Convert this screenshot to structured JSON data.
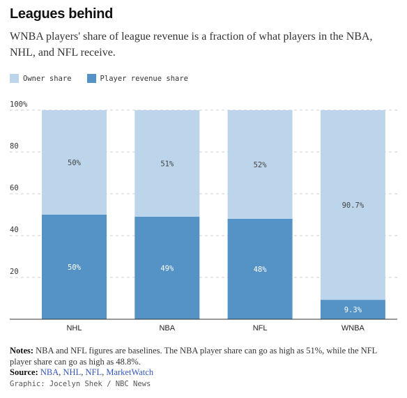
{
  "header": {
    "title": "Leagues behind",
    "subtitle": "WNBA players' share of league revenue is a fraction of what players in the NBA, NHL, and NFL receive."
  },
  "legend": [
    {
      "label": "Owner share",
      "color": "#bcd5ea"
    },
    {
      "label": "Player revenue share",
      "color": "#5592c6"
    }
  ],
  "chart_data": {
    "type": "bar",
    "stacked": true,
    "categories": [
      "NHL",
      "NBA",
      "NFL",
      "WNBA"
    ],
    "series": [
      {
        "name": "Player revenue share",
        "values": [
          50,
          49,
          48,
          9.3
        ],
        "labels": [
          "50%",
          "49%",
          "48%",
          "9.3%"
        ],
        "color": "#5592c6"
      },
      {
        "name": "Owner share",
        "values": [
          50,
          51,
          52,
          90.7
        ],
        "labels": [
          "50%",
          "51%",
          "52%",
          "90.7%"
        ],
        "color": "#bcd5ea"
      }
    ],
    "yticks": [
      "20",
      "40",
      "60",
      "80",
      "100%"
    ],
    "ytick_values": [
      20,
      40,
      60,
      80,
      100
    ],
    "ylim": [
      0,
      100
    ],
    "grid": true
  },
  "footer": {
    "notes_label": "Notes:",
    "notes_text": "NBA and NFL figures are baselines. The NBA player share can go as high as 51%, while the NFL player share can go as high as 48.8%.",
    "source_label": "Source:",
    "sources": [
      "NBA",
      "NHL",
      "NFL",
      "MarketWatch"
    ],
    "credit": "Graphic: Jocelyn Shek / NBC News"
  }
}
